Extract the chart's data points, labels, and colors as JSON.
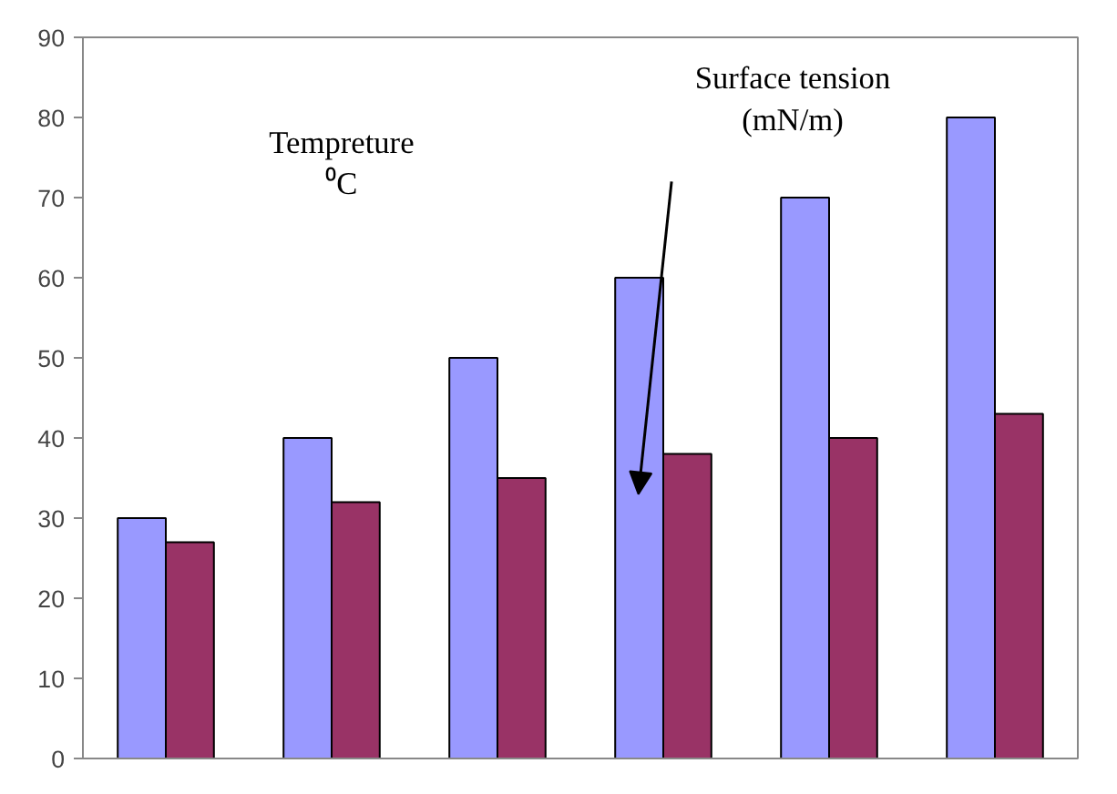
{
  "chart_data": {
    "type": "bar",
    "categories": [
      null,
      null,
      null,
      null,
      null,
      null
    ],
    "series": [
      {
        "color": "#9999ff",
        "values": [
          30,
          40,
          50,
          60,
          70,
          80
        ]
      },
      {
        "color": "#993366",
        "values": [
          27,
          32,
          35,
          38,
          40,
          43
        ]
      }
    ],
    "annotations": [
      "Tempreture\n⁰C",
      "Surface tension\n(mN/m)"
    ],
    "ylim": [
      0,
      90
    ],
    "yticks": [
      0,
      10,
      20,
      30,
      40,
      50,
      60,
      70,
      80,
      90
    ],
    "grid": false
  }
}
